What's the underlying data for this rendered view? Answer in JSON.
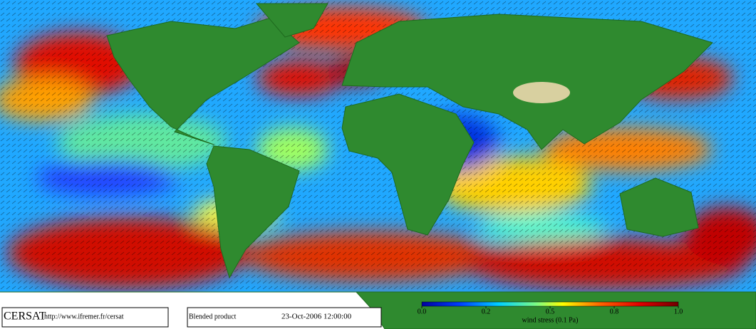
{
  "footer": {
    "logo": "CERSAT",
    "url": "http://www.ifremer.fr/cersat",
    "product": "Blended product",
    "date": "23-Oct-2006 12:00:00"
  },
  "colorbar": {
    "ticks": [
      {
        "value": 0,
        "label": "0.0"
      },
      {
        "value": 0.2,
        "label": "0.2"
      },
      {
        "value": 0.5,
        "label": "0.5"
      },
      {
        "value": 0.8,
        "label": "0.8"
      },
      {
        "value": 1,
        "label": "1.0"
      }
    ],
    "label": "wind stress (0.1 Pa)"
  }
}
